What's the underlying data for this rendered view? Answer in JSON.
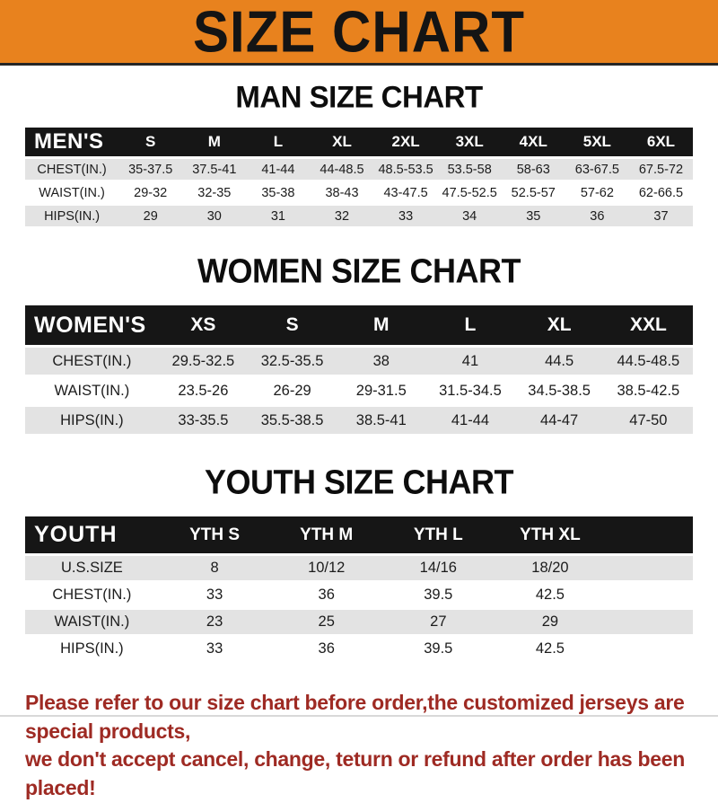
{
  "banner": {
    "title": "SIZE CHART"
  },
  "sections": [
    {
      "key": "men",
      "title": "MAN SIZE CHART",
      "corner_label": "MEN'S",
      "columns": [
        "S",
        "M",
        "L",
        "XL",
        "2XL",
        "3XL",
        "4XL",
        "5XL",
        "6XL"
      ],
      "rows": [
        {
          "label": "CHEST(IN.)",
          "values": [
            "35-37.5",
            "37.5-41",
            "41-44",
            "44-48.5",
            "48.5-53.5",
            "53.5-58",
            "58-63",
            "63-67.5",
            "67.5-72"
          ]
        },
        {
          "label": "WAIST(IN.)",
          "values": [
            "29-32",
            "32-35",
            "35-38",
            "38-43",
            "43-47.5",
            "47.5-52.5",
            "52.5-57",
            "57-62",
            "62-66.5"
          ]
        },
        {
          "label": "HIPS(IN.)",
          "values": [
            "29",
            "30",
            "31",
            "32",
            "33",
            "34",
            "35",
            "36",
            "37"
          ]
        }
      ]
    },
    {
      "key": "women",
      "title": "WOMEN SIZE CHART",
      "corner_label": "WOMEN'S",
      "columns": [
        "XS",
        "S",
        "M",
        "L",
        "XL",
        "XXL"
      ],
      "rows": [
        {
          "label": "CHEST(IN.)",
          "values": [
            "29.5-32.5",
            "32.5-35.5",
            "38",
            "41",
            "44.5",
            "44.5-48.5"
          ]
        },
        {
          "label": "WAIST(IN.)",
          "values": [
            "23.5-26",
            "26-29",
            "29-31.5",
            "31.5-34.5",
            "34.5-38.5",
            "38.5-42.5"
          ]
        },
        {
          "label": "HIPS(IN.)",
          "values": [
            "33-35.5",
            "35.5-38.5",
            "38.5-41",
            "41-44",
            "44-47",
            "47-50"
          ]
        }
      ]
    },
    {
      "key": "youth",
      "title": "YOUTH SIZE CHART",
      "corner_label": "YOUTH",
      "columns": [
        "YTH S",
        "YTH M",
        "YTH L",
        "YTH XL"
      ],
      "rows": [
        {
          "label": "U.S.SIZE",
          "values": [
            "8",
            "10/12",
            "14/16",
            "18/20"
          ]
        },
        {
          "label": "CHEST(IN.)",
          "values": [
            "33",
            "36",
            "39.5",
            "42.5"
          ]
        },
        {
          "label": "WAIST(IN.)",
          "values": [
            "23",
            "25",
            "27",
            "29"
          ]
        },
        {
          "label": "HIPS(IN.)",
          "values": [
            "33",
            "36",
            "39.5",
            "42.5"
          ]
        }
      ]
    }
  ],
  "footer": {
    "line1": "Please refer to our size chart before order,the customized jerseys are special products,",
    "line2": "we don't accept cancel, change, teturn or refund after order has been placed!"
  },
  "colors": {
    "banner_orange": "#E8821E",
    "header_black": "#161616",
    "stripe_gray": "#E3E3E3",
    "footer_red": "#9E2A23"
  }
}
